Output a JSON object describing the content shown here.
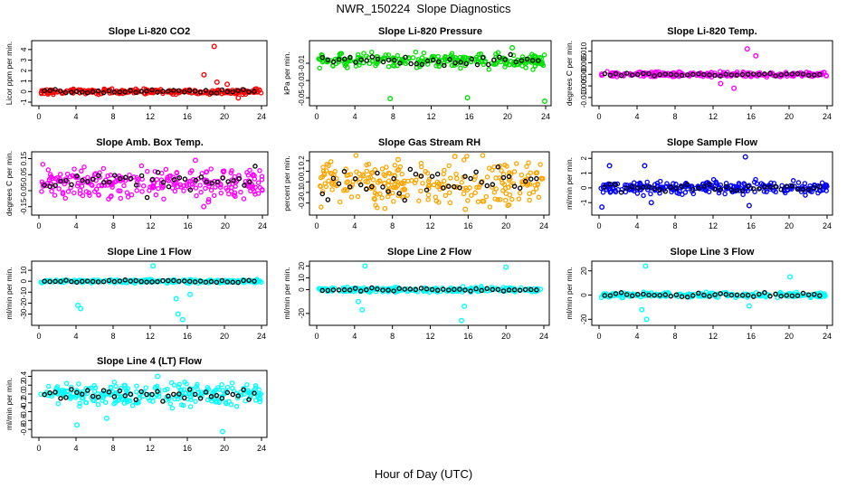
{
  "figure": {
    "title": "NWR_150224  Slope Diagnostics",
    "xlabel": "Hour of Day (UTC)"
  },
  "chart_data": [
    {
      "type": "scatter",
      "title": "Slope Li-820 CO2",
      "ylabel": "Licor ppm per min.",
      "color": "#ff0000",
      "xlim": [
        0,
        24
      ],
      "ylim": [
        -1,
        4.5
      ],
      "xticks": [
        "0",
        "4",
        "8",
        "12",
        "16",
        "20",
        "24"
      ],
      "yticks": [
        "-1",
        "0",
        "1",
        "2",
        "3",
        "4"
      ],
      "ytick_values": [
        -1,
        0,
        1,
        2,
        3,
        4
      ],
      "spread": 0.12,
      "outliers": [
        [
          18.9,
          4.3
        ],
        [
          17.8,
          1.6
        ],
        [
          19.2,
          0.9
        ],
        [
          21.5,
          -0.6
        ],
        [
          20.3,
          0.7
        ]
      ]
    },
    {
      "type": "scatter",
      "title": "Slope Li-820 Pressure",
      "ylabel": "kPa per min.",
      "color": "#00e000",
      "xlim": [
        0,
        24
      ],
      "ylim": [
        -0.055,
        0.012
      ],
      "xticks": [
        "0",
        "4",
        "8",
        "12",
        "16",
        "20",
        "24"
      ],
      "yticks": [
        "-0.05",
        "-0.03",
        "-0.01"
      ],
      "ytick_values": [
        -0.05,
        -0.03,
        -0.01
      ],
      "center": -0.007,
      "spread": 0.004,
      "outliers": [
        [
          7.7,
          -0.051
        ],
        [
          15.8,
          -0.05
        ],
        [
          23.9,
          -0.054
        ],
        [
          3.2,
          -0.015
        ],
        [
          20.5,
          0.008
        ]
      ]
    },
    {
      "type": "scatter",
      "title": "Slope Li-820 Temp.",
      "ylabel": "degrees C per min.",
      "color": "#ff00ff",
      "xlim": [
        0,
        24
      ],
      "ylim": [
        -0.012,
        0.013
      ],
      "xticks": [
        "0",
        "4",
        "8",
        "12",
        "16",
        "20",
        "24"
      ],
      "yticks": [
        "-0.010",
        "-0.005",
        "0.000",
        "0.005",
        "0.010"
      ],
      "ytick_values": [
        -0.01,
        -0.005,
        0,
        0.005,
        0.01
      ],
      "spread": 0.0005,
      "outliers": [
        [
          15.6,
          0.011
        ],
        [
          14.2,
          -0.006
        ],
        [
          16.5,
          0.008
        ],
        [
          12.8,
          -0.004
        ]
      ]
    },
    {
      "type": "scatter",
      "title": "Slope Amb. Box Temp.",
      "ylabel": "degrees C per min.",
      "color": "#ff00ff",
      "xlim": [
        0,
        24
      ],
      "ylim": [
        -0.18,
        0.17
      ],
      "xticks": [
        "0",
        "4",
        "8",
        "12",
        "16",
        "20",
        "24"
      ],
      "yticks": [
        "-0.15",
        "-0.05",
        "0.05",
        "0.15"
      ],
      "ytick_values": [
        -0.15,
        -0.05,
        0.05,
        0.15
      ],
      "spread": 0.05,
      "outliers": [
        [
          16.8,
          0.14
        ],
        [
          17.7,
          -0.15
        ],
        [
          18.2,
          -0.12
        ]
      ]
    },
    {
      "type": "scatter",
      "title": "Slope Gas Stream RH",
      "ylabel": "percent per min.",
      "color": "#ffa500",
      "xlim": [
        0,
        24
      ],
      "ylim": [
        -0.28,
        0.25
      ],
      "xticks": [
        "0",
        "4",
        "8",
        "12",
        "16",
        "20",
        "24"
      ],
      "yticks": [
        "-0.2",
        "-0.1",
        "0.0",
        "0.1",
        "0.2"
      ],
      "ytick_values": [
        -0.2,
        -0.1,
        0,
        0.1,
        0.2
      ],
      "spread": 0.1,
      "outliers": [
        [
          14.6,
          0.24
        ],
        [
          15.7,
          -0.26
        ],
        [
          8.6,
          0.21
        ]
      ]
    },
    {
      "type": "scatter",
      "title": "Slope Sample Flow",
      "ylabel": "ml/min per min.",
      "color": "#0000ff",
      "xlim": [
        0,
        24
      ],
      "ylim": [
        -1.6,
        2.2
      ],
      "xticks": [
        "0",
        "4",
        "8",
        "12",
        "16",
        "20",
        "24"
      ],
      "yticks": [
        "-1",
        "0",
        "1",
        "2"
      ],
      "ytick_values": [
        -1,
        0,
        1,
        2
      ],
      "spread": 0.2,
      "outliers": [
        [
          15.4,
          2.1
        ],
        [
          4.8,
          1.5
        ],
        [
          1.1,
          1.5
        ],
        [
          0.3,
          -1.3
        ],
        [
          5.5,
          -1.0
        ],
        [
          15.8,
          -1.2
        ]
      ]
    },
    {
      "type": "scatter",
      "title": "Slope Line 1 Flow",
      "ylabel": "ml/min per min.",
      "color": "#00ffff",
      "xlim": [
        0,
        24
      ],
      "ylim": [
        -37,
        15
      ],
      "xticks": [
        "0",
        "4",
        "8",
        "12",
        "16",
        "20",
        "24"
      ],
      "yticks": [
        "-30",
        "-20",
        "-10",
        "0",
        "10"
      ],
      "ytick_values": [
        -30,
        -20,
        -10,
        0,
        10
      ],
      "spread": 0.8,
      "outliers": [
        [
          12.3,
          14
        ],
        [
          4.5,
          -25
        ],
        [
          4.2,
          -22
        ],
        [
          15.0,
          -30
        ],
        [
          15.5,
          -35
        ],
        [
          14.8,
          -16
        ],
        [
          16.3,
          -12
        ]
      ]
    },
    {
      "type": "scatter",
      "title": "Slope Line 2 Flow",
      "ylabel": "ml/min per min.",
      "color": "#00ffff",
      "xlim": [
        0,
        24
      ],
      "ylim": [
        -27,
        21
      ],
      "xticks": [
        "0",
        "4",
        "8",
        "12",
        "16",
        "20",
        "24"
      ],
      "yticks": [
        "-20",
        "0",
        "10",
        "20"
      ],
      "ytick_values": [
        -20,
        0,
        10,
        20
      ],
      "spread": 1.0,
      "outliers": [
        [
          5.1,
          20
        ],
        [
          20.0,
          19
        ],
        [
          4.8,
          -17
        ],
        [
          15.6,
          -14
        ],
        [
          15.3,
          -26
        ],
        [
          4.4,
          -10
        ]
      ]
    },
    {
      "type": "scatter",
      "title": "Slope Line 3 Flow",
      "ylabel": "ml/min per min.",
      "color": "#00ffff",
      "xlim": [
        0,
        24
      ],
      "ylim": [
        -22,
        25
      ],
      "xticks": [
        "0",
        "4",
        "8",
        "12",
        "16",
        "20",
        "24"
      ],
      "yticks": [
        "-20",
        "0",
        "20"
      ],
      "ytick_values": [
        -20,
        0,
        20
      ],
      "spread": 1.0,
      "outliers": [
        [
          4.9,
          24
        ],
        [
          20.1,
          15
        ],
        [
          5.0,
          -20
        ],
        [
          4.5,
          -12
        ],
        [
          15.8,
          -9
        ]
      ]
    },
    {
      "type": "scatter",
      "title": "Slope Line 4 (LT) Flow",
      "ylabel": "ml/min per min.",
      "color": "#00ffff",
      "xlim": [
        0,
        24
      ],
      "ylim": [
        -0.9,
        0.45
      ],
      "xticks": [
        "0",
        "4",
        "8",
        "12",
        "16",
        "20",
        "24"
      ],
      "yticks": [
        "-0.8",
        "-0.6",
        "-0.4",
        "-0.2",
        "0.0",
        "0.2",
        "0.4"
      ],
      "ytick_values": [
        -0.8,
        -0.6,
        -0.4,
        -0.2,
        0,
        0.2,
        0.4
      ],
      "spread": 0.12,
      "outliers": [
        [
          4.1,
          -0.7
        ],
        [
          19.8,
          -0.85
        ],
        [
          12.8,
          0.4
        ],
        [
          7.3,
          -0.55
        ]
      ]
    }
  ]
}
